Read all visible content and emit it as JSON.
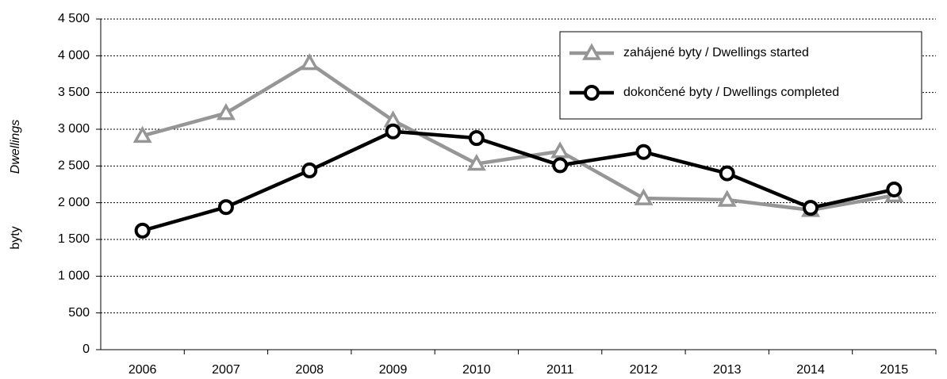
{
  "chart_data": {
    "type": "line",
    "ylabel": "byty",
    "ylabel_en": "Dwellings",
    "categories": [
      "2006",
      "2007",
      "2008",
      "2009",
      "2010",
      "2011",
      "2012",
      "2013",
      "2014",
      "2015"
    ],
    "series": [
      {
        "name": "zahájené byty / Dwellings started",
        "color": "#969696",
        "marker": "triangle",
        "values": [
          2910,
          3220,
          3900,
          3120,
          2530,
          2700,
          2060,
          2040,
          1900,
          2100
        ]
      },
      {
        "name": "dokončené byty / Dwellings completed",
        "color": "#000000",
        "marker": "circle",
        "values": [
          1620,
          1940,
          2440,
          2970,
          2880,
          2510,
          2690,
          2400,
          1930,
          2180
        ]
      }
    ],
    "ylim": [
      0,
      4500
    ],
    "yticks": [
      0,
      500,
      {
        "value": 1000,
        "label": "1 000"
      },
      {
        "value": 1500,
        "label": "1 500"
      },
      {
        "value": 2000,
        "label": "2 000"
      },
      {
        "value": 2500,
        "label": "2 500"
      },
      {
        "value": 3000,
        "label": "3 000"
      },
      {
        "value": 3500,
        "label": "3 500"
      },
      {
        "value": 4000,
        "label": "4 000"
      },
      {
        "value": 4500,
        "label": "4 500"
      }
    ],
    "grid": true,
    "legend": "upper right"
  }
}
